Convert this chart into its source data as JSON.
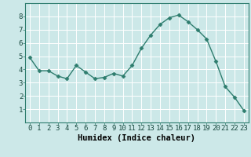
{
  "x": [
    0,
    1,
    2,
    3,
    4,
    5,
    6,
    7,
    8,
    9,
    10,
    11,
    12,
    13,
    14,
    15,
    16,
    17,
    18,
    19,
    20,
    21,
    22,
    23
  ],
  "y": [
    4.9,
    3.9,
    3.9,
    3.5,
    3.3,
    4.3,
    3.8,
    3.3,
    3.4,
    3.7,
    3.5,
    4.3,
    5.6,
    6.6,
    7.4,
    7.9,
    8.1,
    7.6,
    7.0,
    6.3,
    4.6,
    2.7,
    1.9,
    0.9
  ],
  "line_color": "#2e7d6e",
  "marker_color": "#2e7d6e",
  "bg_color": "#cce8e8",
  "grid_color": "#ffffff",
  "xlabel": "Humidex (Indice chaleur)",
  "xlim": [
    -0.5,
    23.5
  ],
  "ylim": [
    0,
    9
  ],
  "yticks": [
    1,
    2,
    3,
    4,
    5,
    6,
    7,
    8
  ],
  "xticks": [
    0,
    1,
    2,
    3,
    4,
    5,
    6,
    7,
    8,
    9,
    10,
    11,
    12,
    13,
    14,
    15,
    16,
    17,
    18,
    19,
    20,
    21,
    22,
    23
  ],
  "xlabel_fontsize": 7.5,
  "tick_fontsize": 6.5,
  "marker_size": 2.5,
  "line_width": 1.0
}
